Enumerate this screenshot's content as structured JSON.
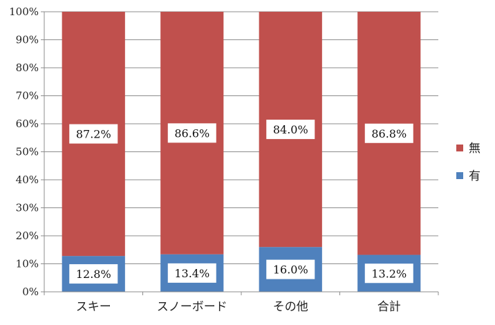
{
  "chart_data": {
    "type": "bar",
    "stacked": true,
    "percent": true,
    "categories": [
      "スキー",
      "スノーボード",
      "その他",
      "合計"
    ],
    "series": [
      {
        "name": "有",
        "color": "#4f81bd",
        "values": [
          12.8,
          13.4,
          16.0,
          13.2
        ]
      },
      {
        "name": "無",
        "color": "#c0504d",
        "values": [
          87.2,
          86.6,
          84.0,
          86.8
        ]
      }
    ],
    "data_labels": {
      "有": [
        "12.8%",
        "13.4%",
        "16.0%",
        "13.2%"
      ],
      "無": [
        "87.2%",
        "86.6%",
        "84.0%",
        "86.8%"
      ]
    },
    "yticks": [
      "0%",
      "10%",
      "20%",
      "30%",
      "40%",
      "50%",
      "60%",
      "70%",
      "80%",
      "90%",
      "100%"
    ],
    "ylim": [
      0,
      100
    ],
    "grid": true,
    "legend_position": "right",
    "legend_order": [
      "無",
      "有"
    ],
    "title": "",
    "xlabel": "",
    "ylabel": ""
  }
}
